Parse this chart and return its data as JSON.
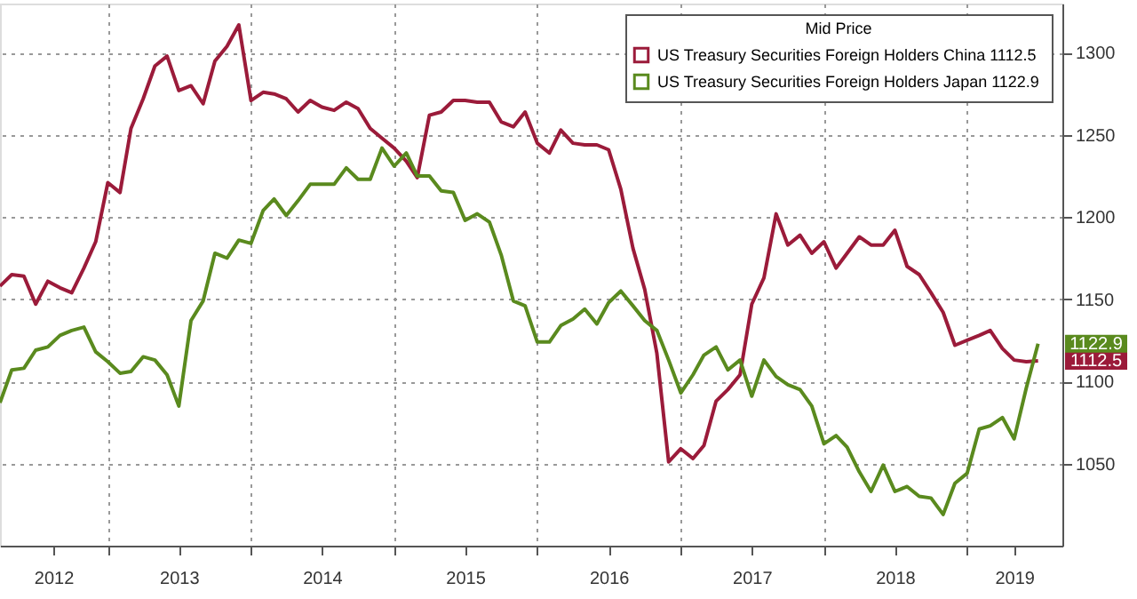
{
  "chart_data": {
    "type": "line",
    "legend_title": "Mid Price",
    "x": [
      "2012-04",
      "2012-05",
      "2012-06",
      "2012-07",
      "2012-08",
      "2012-09",
      "2012-10",
      "2012-11",
      "2012-12",
      "2013-01",
      "2013-02",
      "2013-03",
      "2013-04",
      "2013-05",
      "2013-06",
      "2013-07",
      "2013-08",
      "2013-09",
      "2013-10",
      "2013-11",
      "2013-12",
      "2014-01",
      "2014-02",
      "2014-03",
      "2014-04",
      "2014-05",
      "2014-06",
      "2014-07",
      "2014-08",
      "2014-09",
      "2014-10",
      "2014-11",
      "2014-12",
      "2015-01",
      "2015-02",
      "2015-03",
      "2015-04",
      "2015-05",
      "2015-06",
      "2015-07",
      "2015-08",
      "2015-09",
      "2015-10",
      "2015-11",
      "2015-12",
      "2016-01",
      "2016-02",
      "2016-03",
      "2016-04",
      "2016-05",
      "2016-06",
      "2016-07",
      "2016-08",
      "2016-09",
      "2016-10",
      "2016-11",
      "2016-12",
      "2017-01",
      "2017-02",
      "2017-03",
      "2017-04",
      "2017-05",
      "2017-06",
      "2017-07",
      "2017-08",
      "2017-09",
      "2017-10",
      "2017-11",
      "2017-12",
      "2018-01",
      "2018-02",
      "2018-03",
      "2018-04",
      "2018-05",
      "2018-06",
      "2018-07",
      "2018-08",
      "2018-09",
      "2018-10",
      "2018-11",
      "2018-12",
      "2019-01",
      "2019-02",
      "2019-03",
      "2019-04",
      "2019-05",
      "2019-06",
      "2019-07"
    ],
    "series": [
      {
        "name": "US Treasury Securities Foreign Holders China  1112.5",
        "color": "#9b1b3a",
        "values": [
          1158,
          1165,
          1164,
          1147,
          1161,
          1157,
          1154,
          1169,
          1185,
          1221,
          1215,
          1254,
          1272,
          1292,
          1298,
          1277,
          1280,
          1269,
          1295,
          1304,
          1317,
          1271,
          1276,
          1275,
          1272,
          1264,
          1271,
          1267,
          1265,
          1270,
          1266,
          1254,
          1248,
          1242,
          1234,
          1224,
          1262,
          1264,
          1271,
          1271,
          1270,
          1270,
          1258,
          1255,
          1264,
          1245,
          1239,
          1253,
          1245,
          1244,
          1244,
          1241,
          1217,
          1181,
          1156,
          1117,
          1051,
          1059,
          1053,
          1061,
          1088,
          1095,
          1104,
          1147,
          1163,
          1202,
          1183,
          1189,
          1178,
          1185,
          1169,
          1178,
          1188,
          1183,
          1183,
          1192,
          1170,
          1165,
          1154,
          1142,
          1122,
          1125,
          1128,
          1131,
          1120,
          1113,
          1112,
          1112.5
        ]
      },
      {
        "name": "US Treasury Securities Foreign Holders Japan  1122.9",
        "color": "#5a8a1e",
        "values": [
          1087,
          1107,
          1108,
          1119,
          1121,
          1128,
          1131,
          1133,
          1118,
          1112,
          1105,
          1106,
          1115,
          1113,
          1104,
          1085,
          1137,
          1149,
          1178,
          1175,
          1186,
          1184,
          1204,
          1211,
          1201,
          1210,
          1220,
          1220,
          1220,
          1230,
          1223,
          1223,
          1242,
          1231,
          1239,
          1225,
          1225,
          1216,
          1215,
          1198,
          1202,
          1197,
          1177,
          1149,
          1146,
          1124,
          1124,
          1134,
          1138,
          1144,
          1135,
          1148,
          1155,
          1146,
          1137,
          1131,
          1113,
          1093,
          1104,
          1116,
          1121,
          1107,
          1113,
          1091,
          1113,
          1103,
          1098,
          1095,
          1085,
          1062,
          1067,
          1060,
          1045,
          1033,
          1049,
          1033,
          1036,
          1030,
          1029,
          1019,
          1038,
          1044,
          1071,
          1073,
          1078,
          1065,
          1096,
          1122.9
        ]
      }
    ],
    "xlim": [
      "2012-04",
      "2019-09"
    ],
    "xticks": [
      {
        "value": "2012-08-15",
        "label": "2012"
      },
      {
        "value": "2013-01",
        "label": null
      },
      {
        "value": "2013-07",
        "label": "2013"
      },
      {
        "value": "2014-01",
        "label": null
      },
      {
        "value": "2014-07",
        "label": "2014"
      },
      {
        "value": "2015-01",
        "label": null
      },
      {
        "value": "2015-07",
        "label": "2015"
      },
      {
        "value": "2016-01",
        "label": null
      },
      {
        "value": "2016-07",
        "label": "2016"
      },
      {
        "value": "2017-01",
        "label": null
      },
      {
        "value": "2017-07",
        "label": "2017"
      },
      {
        "value": "2018-01",
        "label": null
      },
      {
        "value": "2018-07",
        "label": "2018"
      },
      {
        "value": "2019-01",
        "label": null
      },
      {
        "value": "2019-05",
        "label": "2019"
      }
    ],
    "ylim": [
      1000,
      1330
    ],
    "yticks": [
      1050,
      1100,
      1150,
      1200,
      1250,
      1300
    ],
    "grid": true,
    "legend": "top right",
    "line_style": "solid",
    "marker": "none",
    "annotations": [
      {
        "text": "1112.5",
        "x": "2019-07",
        "y": 1112.5
      },
      {
        "text": "1122.9",
        "x": "2019-07",
        "y": 1122.9
      }
    ]
  }
}
